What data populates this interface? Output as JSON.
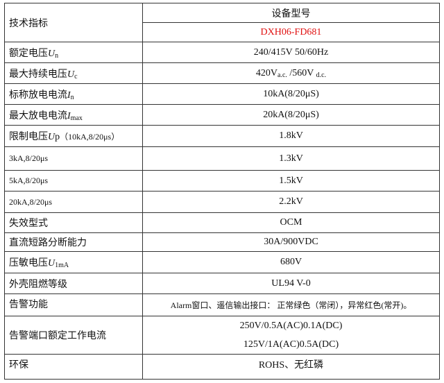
{
  "header": {
    "left": "技术指标",
    "right": "设备型号",
    "model": "DXH06-FD681",
    "model_color": "#e01010"
  },
  "rows": [
    {
      "label": "额定电压",
      "sym": "U",
      "sub": "n",
      "value": "240/415V 50/60Hz"
    },
    {
      "label": "最大持续电压",
      "sym": "U",
      "sub": "c",
      "value": "420V",
      "value_sub1": "a.c.",
      "value_mid": " /560V ",
      "value_sub2": "d.c."
    },
    {
      "label": "标称放电电流",
      "sym": "I",
      "sub": "n",
      "value": "10kA(8/20μS)"
    },
    {
      "label": "最大放电电流",
      "sym": "I",
      "sub": "max",
      "value": "20kA(8/20μS)"
    },
    {
      "label": "限制电压",
      "sym": "U",
      "tail": "p",
      "note": "（10kA,8/20μs）",
      "value": "1.8kV"
    },
    {
      "label": "3kA,8/20μs",
      "value": "1.3kV"
    },
    {
      "label": "5kA,8/20μs",
      "value": "1.5kV"
    },
    {
      "label": "20kA,8/20μs",
      "value": "2.2kV"
    },
    {
      "label": "失效型式",
      "value": "OCM"
    },
    {
      "label": "直流短路分断能力",
      "value": "30A/900VDC"
    },
    {
      "label": "压敏电压",
      "sym": "U",
      "sub": "1mA",
      "value": "680V"
    },
    {
      "label": "外壳阻燃等级",
      "value": "UL94 V-0"
    },
    {
      "label": "告警功能",
      "value": "Alarm窗口、遥信输出接口： 正常绿色（常闭），异常红色(常开)。"
    },
    {
      "label": "告警端口额定工作电流",
      "value": "250V/0.5A(AC)0.1A(DC)",
      "value2": "125V/1A(AC)0.5A(DC)"
    },
    {
      "label": "环保",
      "value": "ROHS、无红磷"
    }
  ]
}
